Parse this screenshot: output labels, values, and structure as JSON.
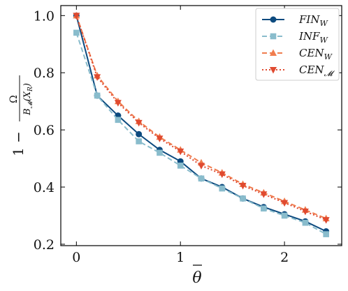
{
  "chart_data": {
    "type": "line",
    "xlabel": "θ̄",
    "ylabel": "1 − Ω / B_𝓜(X_R)",
    "ylabel_parts": {
      "prefix": "1 −",
      "numerator": "Ω",
      "denominator": "B",
      "denominator_sub": "𝓜",
      "denominator_arg": "(X",
      "denominator_arg_sub": "R",
      "denominator_close": ")"
    },
    "xlim": [
      -0.15,
      2.55
    ],
    "ylim": [
      0.195,
      1.035
    ],
    "xticks": [
      0,
      1,
      2
    ],
    "yticks": [
      0.2,
      0.4,
      0.6,
      0.8,
      1.0
    ],
    "xtick_labels": [
      "0",
      "1",
      "2"
    ],
    "ytick_labels": [
      "0.2",
      "0.4",
      "0.6",
      "0.8",
      "1.0"
    ],
    "grid": false,
    "legend_position": "top-right",
    "x": [
      0,
      0.2,
      0.4,
      0.6,
      0.8,
      1.0,
      1.2,
      1.4,
      1.6,
      1.8,
      2.0,
      2.2,
      2.4
    ],
    "series": [
      {
        "name": "FIN_W",
        "label_main": "FIN",
        "label_sub": "W",
        "color": "#0c4a7f",
        "line_style": "solid",
        "marker": "circle",
        "values": [
          1.0,
          0.72,
          0.65,
          0.585,
          0.53,
          0.49,
          0.43,
          0.4,
          0.36,
          0.33,
          0.305,
          0.28,
          0.245
        ]
      },
      {
        "name": "INF_W",
        "label_main": "INF",
        "label_sub": "W",
        "color": "#89bccc",
        "line_style": "dashed",
        "marker": "square",
        "values": [
          0.94,
          0.72,
          0.635,
          0.56,
          0.52,
          0.475,
          0.43,
          0.395,
          0.36,
          0.325,
          0.3,
          0.275,
          0.235
        ]
      },
      {
        "name": "CEN_W",
        "label_main": "CEN",
        "label_sub": "W",
        "color": "#f07d4e",
        "line_style": "dashed",
        "marker": "triangle-up",
        "values": [
          1.0,
          0.79,
          0.7,
          0.63,
          0.575,
          0.53,
          0.485,
          0.45,
          0.41,
          0.38,
          0.35,
          0.32,
          0.29
        ]
      },
      {
        "name": "CEN_𝓜",
        "label_main": "CEN",
        "label_sub": "𝓜",
        "color": "#e04a30",
        "line_style": "dotted",
        "marker": "triangle-down",
        "values": [
          1.0,
          0.785,
          0.695,
          0.625,
          0.57,
          0.525,
          0.475,
          0.445,
          0.405,
          0.375,
          0.345,
          0.315,
          0.285
        ]
      }
    ]
  }
}
